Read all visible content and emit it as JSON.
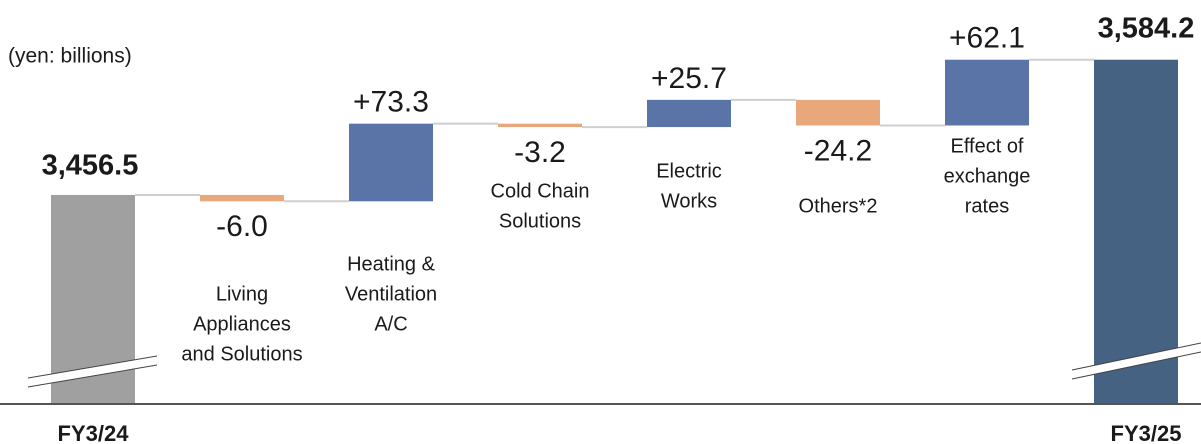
{
  "chart_data": {
    "type": "waterfall",
    "subtitle": "(yen: billions)",
    "categories": [
      [
        "FY3/24"
      ],
      [
        "Living",
        "Appliances",
        "and Solutions"
      ],
      [
        "Heating &",
        "Ventilation",
        "A/C"
      ],
      [
        "Cold Chain",
        "Solutions"
      ],
      [
        "Electric",
        "Works"
      ],
      [
        "Others*2"
      ],
      [
        "Effect of",
        "exchange",
        "rates"
      ],
      [
        "FY3/25"
      ]
    ],
    "values": [
      3456.5,
      -6.0,
      73.3,
      -3.2,
      25.7,
      -24.2,
      62.1,
      3584.2
    ],
    "value_labels": [
      "3,456.5",
      "-6.0",
      "+73.3",
      "-3.2",
      "+25.7",
      "-24.2",
      "+62.1",
      "3,584.2"
    ],
    "measure": [
      "absolute",
      "relative",
      "relative",
      "relative",
      "relative",
      "relative",
      "relative",
      "total"
    ],
    "colors": {
      "absolute": "#a0a0a0",
      "increase": "#5b74a8",
      "decrease": "#e8a87c",
      "total": "#466282"
    },
    "ylim": [
      3260,
      3600
    ],
    "axis_break": true
  }
}
